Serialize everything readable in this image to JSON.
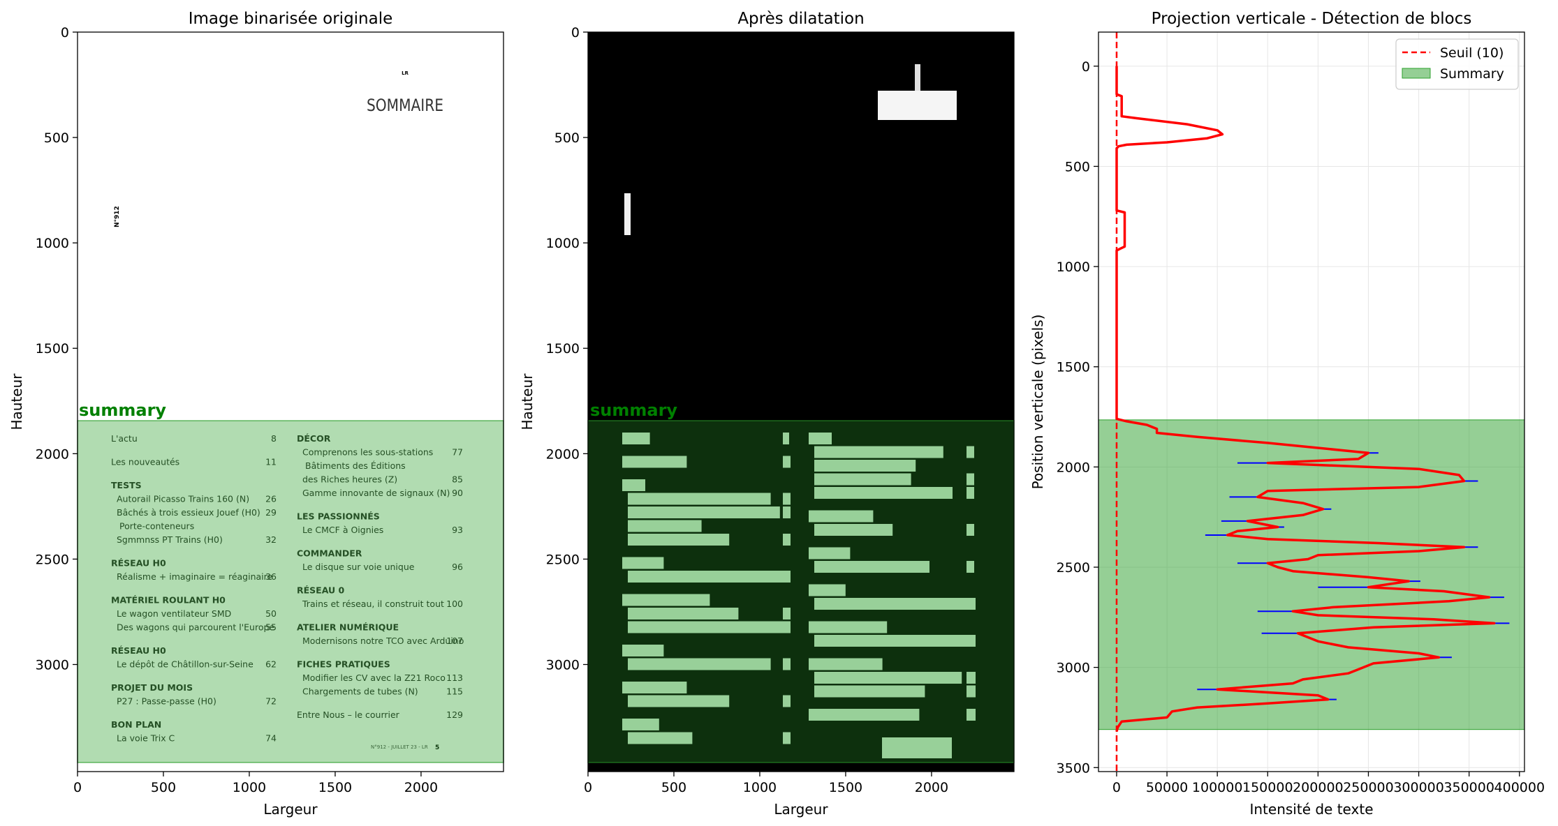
{
  "figure": {
    "panels": [
      {
        "title": "Image binarisée originale",
        "xlabel": "Largeur",
        "ylabel": "Hauteur"
      },
      {
        "title": "Après dilatation",
        "xlabel": "Largeur",
        "ylabel": "Hauteur"
      },
      {
        "title": "Projection verticale - Détection de blocs",
        "xlabel": "Intensité de texte",
        "ylabel": "Position verticale (pixels)"
      }
    ],
    "region_label": "summary",
    "colors": {
      "summary_fill": "#2ca02c",
      "threshold": "#ff0000",
      "profile": "#ff0000",
      "raw_profile": "#0000ff",
      "region_label": "#008000"
    }
  },
  "document": {
    "number": "N°912",
    "logo": "LR",
    "heading": "SOMMAIRE",
    "footer": "N°912 - JUILLET 23 - LR",
    "footer_page": "5",
    "left_column": [
      {
        "text": "L'actu",
        "page": "8",
        "kind": "entry-top"
      },
      {
        "text": "Les nouveautés",
        "page": "11",
        "kind": "entry-top"
      },
      {
        "text": "TESTS",
        "page": "",
        "kind": "section"
      },
      {
        "text": "Autorail Picasso Trains 160 (N)",
        "page": "26",
        "kind": "entry"
      },
      {
        "text": "Bâchés à trois essieux Jouef (H0)",
        "page": "29",
        "kind": "entry"
      },
      {
        "text": "Porte-conteneurs",
        "page": "",
        "kind": "entry-cont"
      },
      {
        "text": "Sgmmnss PT Trains (H0)",
        "page": "32",
        "kind": "entry"
      },
      {
        "text": "RÉSEAU H0",
        "page": "",
        "kind": "section"
      },
      {
        "text": "Réalisme + imaginaire = réaginaire",
        "page": "36",
        "kind": "entry"
      },
      {
        "text": "MATÉRIEL ROULANT H0",
        "page": "",
        "kind": "section"
      },
      {
        "text": "Le wagon ventilateur SMD",
        "page": "50",
        "kind": "entry"
      },
      {
        "text": "Des wagons qui parcourent l'Europe",
        "page": "55",
        "kind": "entry"
      },
      {
        "text": "RÉSEAU H0",
        "page": "",
        "kind": "section"
      },
      {
        "text": "Le dépôt de Châtillon-sur-Seine",
        "page": "62",
        "kind": "entry"
      },
      {
        "text": "PROJET DU MOIS",
        "page": "",
        "kind": "section"
      },
      {
        "text": "P27 : Passe-passe (H0)",
        "page": "72",
        "kind": "entry"
      },
      {
        "text": "BON PLAN",
        "page": "",
        "kind": "section"
      },
      {
        "text": "La voie Trix C",
        "page": "74",
        "kind": "entry"
      }
    ],
    "right_column": [
      {
        "text": "DÉCOR",
        "page": "",
        "kind": "section"
      },
      {
        "text": "Comprenons les sous-stations",
        "page": "77",
        "kind": "entry"
      },
      {
        "text": "Bâtiments des Éditions",
        "page": "",
        "kind": "entry-cont"
      },
      {
        "text": "des Riches heures (Z)",
        "page": "85",
        "kind": "entry"
      },
      {
        "text": "Gamme innovante de signaux (N)",
        "page": "90",
        "kind": "entry"
      },
      {
        "text": "LES PASSIONNÉS",
        "page": "",
        "kind": "section"
      },
      {
        "text": "Le CMCF à Oignies",
        "page": "93",
        "kind": "entry"
      },
      {
        "text": "COMMANDER",
        "page": "",
        "kind": "section"
      },
      {
        "text": "Le disque sur voie unique",
        "page": "96",
        "kind": "entry"
      },
      {
        "text": "RÉSEAU 0",
        "page": "",
        "kind": "section"
      },
      {
        "text": "Trains et réseau, il construit tout",
        "page": "100",
        "kind": "entry"
      },
      {
        "text": "ATELIER NUMÉRIQUE",
        "page": "",
        "kind": "section"
      },
      {
        "text": "Modernisons notre TCO avec Arduino",
        "page": "107",
        "kind": "entry"
      },
      {
        "text": "FICHES PRATIQUES",
        "page": "",
        "kind": "section"
      },
      {
        "text": "Modifier les CV avec la Z21 Roco",
        "page": "113",
        "kind": "entry"
      },
      {
        "text": "Chargements de tubes (N)",
        "page": "115",
        "kind": "entry"
      },
      {
        "text": "Entre Nous – le courrier",
        "page": "129",
        "kind": "entry-top"
      }
    ]
  },
  "chart_data": [
    {
      "type": "image",
      "title": "Image binarisée originale",
      "xlabel": "Largeur",
      "ylabel": "Hauteur",
      "xlim": [
        0,
        2480
      ],
      "ylim": [
        3508,
        0
      ],
      "xticks": [
        0,
        500,
        1000,
        1500,
        2000
      ],
      "yticks": [
        0,
        500,
        1000,
        1500,
        2000,
        2500,
        3000
      ],
      "regions": [
        {
          "label": "summary",
          "y_start": 1765,
          "y_end": 3310
        }
      ]
    },
    {
      "type": "image",
      "title": "Après dilatation",
      "xlabel": "Largeur",
      "ylabel": "Hauteur",
      "xlim": [
        0,
        2480
      ],
      "ylim": [
        3508,
        0
      ],
      "xticks": [
        0,
        500,
        1000,
        1500,
        2000
      ],
      "yticks": [
        0,
        500,
        1000,
        1500,
        2000,
        2500,
        3000
      ],
      "regions": [
        {
          "label": "summary",
          "y_start": 1765,
          "y_end": 3310
        }
      ]
    },
    {
      "type": "line",
      "title": "Projection verticale - Détection de blocs",
      "xlabel": "Intensité de texte",
      "ylabel": "Position verticale (pixels)",
      "xlim": [
        -18000,
        405000
      ],
      "ylim": [
        3520,
        -170
      ],
      "xticks": [
        0,
        50000,
        100000,
        150000,
        200000,
        250000,
        300000,
        350000,
        400000
      ],
      "yticks": [
        0,
        500,
        1000,
        1500,
        2000,
        2500,
        3000,
        3500
      ],
      "grid": true,
      "legend": "top-right",
      "threshold": {
        "name": "Seuil (10)",
        "value": 10
      },
      "span": {
        "name": "Summary",
        "y_start": 1765,
        "y_end": 3310
      },
      "series": [
        {
          "y": [
            0,
            140,
            150,
            170,
            250,
            260,
            290,
            320,
            340,
            360,
            380,
            392,
            400,
            410,
            720,
            730,
            740,
            760,
            900,
            910,
            920,
            940,
            1760,
            1772,
            1790,
            1810,
            1830,
            1850,
            1880,
            1900,
            1930,
            1960,
            1980,
            2010,
            2040,
            2070,
            2100,
            2120,
            2150,
            2180,
            2210,
            2240,
            2270,
            2300,
            2320,
            2340,
            2360,
            2380,
            2400,
            2420,
            2440,
            2460,
            2480,
            2500,
            2520,
            2550,
            2570,
            2600,
            2620,
            2650,
            2670,
            2700,
            2720,
            2740,
            2760,
            2780,
            2800,
            2830,
            2850,
            2870,
            2900,
            2930,
            2950,
            2980,
            3010,
            3030,
            3060,
            3080,
            3110,
            3140,
            3160,
            3180,
            3200,
            3220,
            3250,
            3270,
            3300,
            3320
          ],
          "x": [
            0,
            0,
            5000,
            5000,
            5000,
            20000,
            70000,
            100000,
            105000,
            90000,
            50000,
            10000,
            2000,
            0,
            0,
            8000,
            8000,
            8000,
            8000,
            4000,
            0,
            0,
            0,
            10000,
            30000,
            40000,
            40000,
            80000,
            150000,
            190000,
            250000,
            240000,
            150000,
            300000,
            340000,
            345000,
            300000,
            150000,
            140000,
            185000,
            205000,
            185000,
            130000,
            160000,
            120000,
            110000,
            150000,
            260000,
            345000,
            300000,
            200000,
            190000,
            150000,
            160000,
            175000,
            250000,
            290000,
            250000,
            325000,
            370000,
            330000,
            215000,
            175000,
            200000,
            315000,
            375000,
            255000,
            180000,
            190000,
            200000,
            230000,
            300000,
            320000,
            255000,
            240000,
            230000,
            185000,
            175000,
            100000,
            200000,
            210000,
            150000,
            80000,
            55000,
            50000,
            5000,
            1000,
            0
          ]
        }
      ]
    }
  ]
}
